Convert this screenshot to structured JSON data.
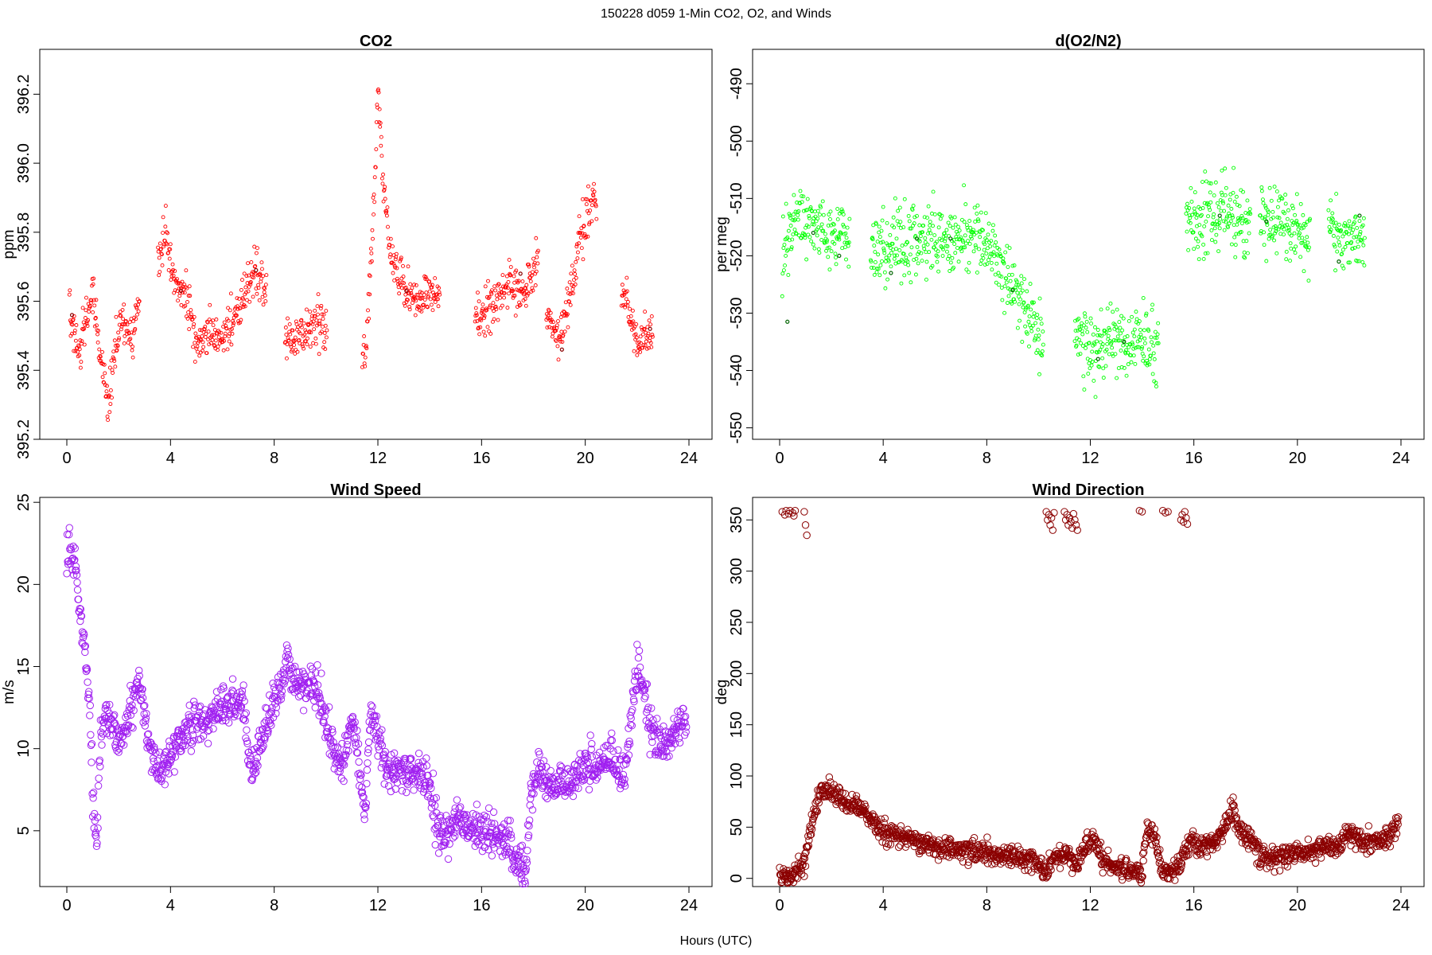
{
  "figure": {
    "title": "150228   d059   1-Min CO2, O2, and Winds",
    "xlabel": "Hours (UTC)"
  },
  "chart_data": [
    {
      "id": "co2",
      "type": "scatter",
      "title": "CO2",
      "xlabel": "",
      "ylabel": "ppm",
      "xlim": [
        0,
        24
      ],
      "ylim": [
        395.2,
        396.33
      ],
      "xticks": [
        0,
        4,
        8,
        12,
        16,
        20,
        24
      ],
      "yticks": [
        395.2,
        395.4,
        395.6,
        395.8,
        396.0,
        396.2
      ],
      "ytick_labels": [
        "395.2",
        "395.4",
        "395.6",
        "395.8",
        "396.0",
        "396.2"
      ],
      "color": "#ff0000",
      "accent_color": "#8b0000",
      "marker": "open-circle",
      "marker_size": "small",
      "anchors": [
        [
          0.1,
          395.56
        ],
        [
          0.5,
          395.46
        ],
        [
          1.0,
          395.62
        ],
        [
          1.3,
          395.45
        ],
        [
          1.6,
          395.3
        ],
        [
          1.9,
          395.48
        ],
        [
          2.2,
          395.55
        ],
        [
          2.5,
          395.5
        ],
        [
          2.75,
          395.58
        ],
        [
          3.5,
          395.7
        ],
        [
          3.8,
          395.8
        ],
        [
          4.2,
          395.64
        ],
        [
          4.6,
          395.62
        ],
        [
          5.0,
          395.48
        ],
        [
          5.5,
          395.5
        ],
        [
          6.0,
          395.5
        ],
        [
          6.5,
          395.55
        ],
        [
          7.0,
          395.66
        ],
        [
          7.3,
          395.69
        ],
        [
          7.6,
          395.64
        ],
        [
          8.5,
          395.5
        ],
        [
          9.2,
          395.5
        ],
        [
          9.7,
          395.55
        ],
        [
          10.0,
          395.5
        ],
        [
          11.5,
          395.44
        ],
        [
          11.8,
          395.8
        ],
        [
          12.0,
          396.2
        ],
        [
          12.2,
          395.95
        ],
        [
          12.5,
          395.72
        ],
        [
          13.0,
          395.64
        ],
        [
          13.6,
          395.62
        ],
        [
          14.3,
          395.62
        ],
        [
          15.8,
          395.55
        ],
        [
          16.5,
          395.6
        ],
        [
          17.0,
          395.66
        ],
        [
          17.6,
          395.62
        ],
        [
          18.1,
          395.7
        ],
        [
          18.5,
          395.6
        ],
        [
          19.0,
          395.48
        ],
        [
          19.5,
          395.65
        ],
        [
          19.8,
          395.78
        ],
        [
          20.3,
          395.9
        ],
        [
          21.5,
          395.62
        ],
        [
          22.0,
          395.46
        ],
        [
          22.6,
          395.52
        ]
      ],
      "gaps": [
        [
          2.8,
          3.5
        ],
        [
          7.7,
          8.4
        ],
        [
          10.05,
          11.4
        ],
        [
          14.4,
          15.75
        ],
        [
          18.2,
          18.5
        ],
        [
          20.45,
          21.4
        ]
      ],
      "noise": 0.06,
      "highlight_points": [
        [
          0.2,
          395.56
        ],
        [
          4.4,
          395.63
        ],
        [
          7.3,
          395.69
        ],
        [
          13.1,
          395.63
        ],
        [
          17.5,
          395.68
        ],
        [
          19.1,
          395.46
        ],
        [
          22.5,
          395.52
        ]
      ]
    },
    {
      "id": "o2",
      "type": "scatter",
      "title": "d(O2/N2)",
      "xlabel": "",
      "ylabel": "per meg",
      "xlim": [
        0,
        24
      ],
      "ylim": [
        -552,
        -484
      ],
      "xticks": [
        0,
        4,
        8,
        12,
        16,
        20,
        24
      ],
      "yticks": [
        -550,
        -540,
        -530,
        -520,
        -510,
        -500,
        -490
      ],
      "ytick_labels": [
        "-550",
        "-540",
        "-530",
        "-520",
        "-510",
        "-500",
        "-490"
      ],
      "color": "#00ff00",
      "accent_color": "#006400",
      "marker": "open-circle",
      "marker_size": "small",
      "anchors": [
        [
          0.1,
          -520
        ],
        [
          0.6,
          -513
        ],
        [
          1.0,
          -515
        ],
        [
          1.5,
          -514
        ],
        [
          2.0,
          -516
        ],
        [
          2.6,
          -518
        ],
        [
          3.6,
          -520
        ],
        [
          4.5,
          -518
        ],
        [
          5.5,
          -518
        ],
        [
          6.5,
          -517
        ],
        [
          7.2,
          -516
        ],
        [
          7.8,
          -517
        ],
        [
          8.5,
          -522
        ],
        [
          9.2,
          -527
        ],
        [
          9.8,
          -532
        ],
        [
          10.1,
          -534
        ],
        [
          11.5,
          -535
        ],
        [
          12.2,
          -537
        ],
        [
          12.8,
          -534
        ],
        [
          13.4,
          -535
        ],
        [
          14.0,
          -535
        ],
        [
          14.6,
          -535
        ],
        [
          15.8,
          -513
        ],
        [
          16.5,
          -514
        ],
        [
          17.2,
          -513
        ],
        [
          18.0,
          -514
        ],
        [
          18.6,
          -513
        ],
        [
          19.4,
          -514
        ],
        [
          20.0,
          -515
        ],
        [
          20.4,
          -517
        ],
        [
          21.3,
          -515
        ],
        [
          22.0,
          -518
        ],
        [
          22.6,
          -515
        ]
      ],
      "gaps": [
        [
          2.7,
          3.5
        ],
        [
          10.2,
          11.4
        ],
        [
          14.65,
          15.7
        ],
        [
          18.2,
          18.55
        ],
        [
          20.5,
          21.2
        ]
      ],
      "noise": 5.5,
      "highlight_points": [
        [
          0.3,
          -531.5
        ],
        [
          1.3,
          -516
        ],
        [
          2.3,
          -520
        ],
        [
          4.3,
          -523
        ],
        [
          5.3,
          -517
        ],
        [
          6.6,
          -517
        ],
        [
          9.0,
          -526
        ],
        [
          12.3,
          -538
        ],
        [
          13.3,
          -535
        ],
        [
          17.0,
          -513
        ],
        [
          18.8,
          -514
        ],
        [
          21.6,
          -521
        ],
        [
          22.4,
          -513
        ]
      ]
    },
    {
      "id": "wind_speed",
      "type": "scatter",
      "title": "Wind Speed",
      "xlabel": "",
      "ylabel": "m/s",
      "xlim": [
        0,
        24
      ],
      "ylim": [
        1.6,
        25.3
      ],
      "xticks": [
        0,
        4,
        8,
        12,
        16,
        20,
        24
      ],
      "yticks": [
        5,
        10,
        15,
        20,
        25
      ],
      "ytick_labels": [
        "5",
        "10",
        "15",
        "20",
        "25"
      ],
      "color": "#a020f0",
      "marker": "open-circle",
      "marker_size": "large",
      "anchors": [
        [
          0.0,
          22.5
        ],
        [
          0.3,
          21
        ],
        [
          0.5,
          19
        ],
        [
          0.7,
          16
        ],
        [
          0.9,
          12
        ],
        [
          1.0,
          7
        ],
        [
          1.15,
          4
        ],
        [
          1.3,
          11
        ],
        [
          1.6,
          12.5
        ],
        [
          2.0,
          10
        ],
        [
          2.5,
          12.5
        ],
        [
          2.8,
          14
        ],
        [
          3.1,
          11
        ],
        [
          3.5,
          8.5
        ],
        [
          4.0,
          9.5
        ],
        [
          4.5,
          11
        ],
        [
          5.0,
          11.5
        ],
        [
          5.5,
          12
        ],
        [
          6.0,
          12.5
        ],
        [
          6.5,
          12.5
        ],
        [
          6.8,
          13
        ],
        [
          7.0,
          10
        ],
        [
          7.2,
          8.5
        ],
        [
          7.6,
          11
        ],
        [
          8.0,
          13
        ],
        [
          8.5,
          15
        ],
        [
          9.0,
          14
        ],
        [
          9.5,
          14
        ],
        [
          9.8,
          13
        ],
        [
          10.0,
          11.5
        ],
        [
          10.3,
          10
        ],
        [
          10.6,
          9
        ],
        [
          11.0,
          12
        ],
        [
          11.2,
          10
        ],
        [
          11.5,
          6
        ],
        [
          11.7,
          12
        ],
        [
          12.0,
          11
        ],
        [
          12.3,
          9
        ],
        [
          13.0,
          8.5
        ],
        [
          13.5,
          8.5
        ],
        [
          14.0,
          8
        ],
        [
          14.2,
          6
        ],
        [
          14.5,
          4.5
        ],
        [
          14.8,
          5
        ],
        [
          15.0,
          6
        ],
        [
          15.5,
          5
        ],
        [
          16.0,
          5
        ],
        [
          16.5,
          4.5
        ],
        [
          17.0,
          4.5
        ],
        [
          17.5,
          3
        ],
        [
          17.7,
          2.5
        ],
        [
          17.9,
          7
        ],
        [
          18.2,
          9
        ],
        [
          18.6,
          7.5
        ],
        [
          19.0,
          8
        ],
        [
          19.5,
          8
        ],
        [
          20.0,
          9
        ],
        [
          20.5,
          9
        ],
        [
          21.0,
          9.5
        ],
        [
          21.5,
          8
        ],
        [
          22.0,
          15
        ],
        [
          22.2,
          14
        ],
        [
          22.5,
          11
        ],
        [
          23.0,
          10
        ],
        [
          23.5,
          11
        ],
        [
          23.9,
          12
        ]
      ],
      "gaps": [],
      "noise": 1.1
    },
    {
      "id": "wind_direction",
      "type": "scatter",
      "title": "Wind Direction",
      "xlabel": "",
      "ylabel": "deg",
      "xlim": [
        0,
        24
      ],
      "ylim": [
        -8,
        372
      ],
      "xticks": [
        0,
        4,
        8,
        12,
        16,
        20,
        24
      ],
      "yticks": [
        0,
        50,
        100,
        150,
        200,
        250,
        300,
        350
      ],
      "ytick_labels": [
        "0",
        "50",
        "100",
        "150",
        "200",
        "250",
        "300",
        "350"
      ],
      "color": "#8b0000",
      "marker": "open-circle",
      "marker_size": "large",
      "anchors": [
        [
          0.0,
          5
        ],
        [
          0.3,
          0
        ],
        [
          0.5,
          3
        ],
        [
          0.8,
          10
        ],
        [
          1.0,
          20
        ],
        [
          1.3,
          60
        ],
        [
          1.6,
          85
        ],
        [
          2.0,
          85
        ],
        [
          2.5,
          75
        ],
        [
          3.0,
          70
        ],
        [
          3.5,
          60
        ],
        [
          4.0,
          45
        ],
        [
          5.0,
          40
        ],
        [
          6.0,
          30
        ],
        [
          7.0,
          28
        ],
        [
          8.0,
          25
        ],
        [
          9.0,
          22
        ],
        [
          10.0,
          15
        ],
        [
          10.3,
          5
        ],
        [
          10.6,
          20
        ],
        [
          11.0,
          25
        ],
        [
          11.5,
          10
        ],
        [
          11.8,
          35
        ],
        [
          12.2,
          38
        ],
        [
          12.5,
          15
        ],
        [
          13.0,
          12
        ],
        [
          13.5,
          8
        ],
        [
          14.0,
          5
        ],
        [
          14.2,
          50
        ],
        [
          14.5,
          40
        ],
        [
          14.7,
          10
        ],
        [
          15.0,
          5
        ],
        [
          15.5,
          15
        ],
        [
          15.9,
          40
        ],
        [
          16.2,
          30
        ],
        [
          16.8,
          35
        ],
        [
          17.2,
          50
        ],
        [
          17.5,
          70
        ],
        [
          17.8,
          45
        ],
        [
          18.2,
          40
        ],
        [
          18.6,
          20
        ],
        [
          19.2,
          20
        ],
        [
          20.0,
          25
        ],
        [
          20.5,
          25
        ],
        [
          21.0,
          30
        ],
        [
          21.5,
          30
        ],
        [
          22.0,
          45
        ],
        [
          22.5,
          35
        ],
        [
          23.0,
          35
        ],
        [
          23.5,
          40
        ],
        [
          23.9,
          55
        ]
      ],
      "gaps": [],
      "noise": 9,
      "wrap_points": [
        [
          0.1,
          358
        ],
        [
          0.2,
          355
        ],
        [
          0.25,
          359
        ],
        [
          0.35,
          356
        ],
        [
          0.4,
          359
        ],
        [
          0.5,
          357
        ],
        [
          0.55,
          354
        ],
        [
          0.6,
          359
        ],
        [
          0.95,
          358
        ],
        [
          1.0,
          345
        ],
        [
          1.05,
          335
        ],
        [
          10.3,
          358
        ],
        [
          10.35,
          350
        ],
        [
          10.4,
          355
        ],
        [
          10.45,
          345
        ],
        [
          10.5,
          352
        ],
        [
          10.55,
          340
        ],
        [
          10.6,
          357
        ],
        [
          11.0,
          358
        ],
        [
          11.05,
          350
        ],
        [
          11.1,
          355
        ],
        [
          11.15,
          345
        ],
        [
          11.2,
          352
        ],
        [
          11.25,
          348
        ],
        [
          11.3,
          342
        ],
        [
          11.35,
          356
        ],
        [
          11.4,
          350
        ],
        [
          11.45,
          345
        ],
        [
          11.5,
          340
        ],
        [
          13.9,
          359
        ],
        [
          14.0,
          358
        ],
        [
          14.8,
          359
        ],
        [
          14.9,
          357
        ],
        [
          15.0,
          358
        ],
        [
          15.5,
          350
        ],
        [
          15.55,
          355
        ],
        [
          15.6,
          348
        ],
        [
          15.65,
          358
        ],
        [
          15.7,
          352
        ],
        [
          15.75,
          346
        ]
      ]
    }
  ]
}
